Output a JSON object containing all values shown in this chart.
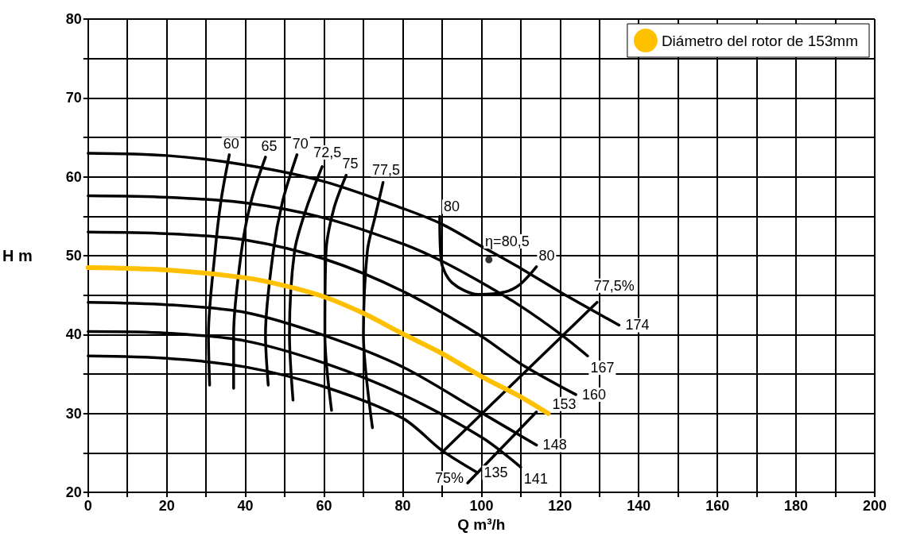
{
  "chart_data": {
    "type": "line",
    "xlabel": "Q m³/h",
    "ylabel": "H m",
    "xlim": [
      0,
      200
    ],
    "ylim": [
      20,
      80
    ],
    "xticks": [
      0,
      {
        "value": 10,
        "label": null
      },
      20,
      {
        "value": 30,
        "label": null
      },
      40,
      {
        "value": 50,
        "label": null
      },
      60,
      {
        "value": 70,
        "label": null
      },
      80,
      {
        "value": 90,
        "label": null
      },
      100,
      {
        "value": 110,
        "label": null
      },
      120,
      {
        "value": 130,
        "label": null
      },
      140,
      {
        "value": 150,
        "label": null
      },
      160,
      {
        "value": 170,
        "label": null
      },
      180,
      {
        "value": 190,
        "label": null
      },
      200
    ],
    "yticks": [
      20,
      {
        "value": 25,
        "label": null
      },
      30,
      {
        "value": 35,
        "label": null
      },
      40,
      {
        "value": 45,
        "label": null
      },
      50,
      {
        "value": 55,
        "label": null
      },
      60,
      {
        "value": 65,
        "label": null
      },
      70,
      {
        "value": 75,
        "label": null
      },
      80
    ],
    "grid": true,
    "legend": "top right",
    "marker": "none",
    "line_style": "solid",
    "series": [
      {
        "name": "174",
        "color": "#000000",
        "x": [
          0,
          20,
          40,
          60,
          80,
          90,
          100,
          110,
          120,
          135
        ],
        "values": [
          63.0,
          62.7,
          61.5,
          59.4,
          56.0,
          54.0,
          51.2,
          48.4,
          45.4,
          41.2
        ]
      },
      {
        "name": "167",
        "color": "#000000",
        "x": [
          0,
          20,
          40,
          60,
          80,
          90,
          100,
          110,
          120,
          127
        ],
        "values": [
          57.6,
          57.4,
          56.7,
          54.8,
          51.5,
          49.3,
          46.6,
          43.6,
          40.1,
          37.3
        ]
      },
      {
        "name": "160",
        "color": "#000000",
        "x": [
          0,
          20,
          40,
          60,
          80,
          100,
          110,
          124
        ],
        "values": [
          53.0,
          52.8,
          52.0,
          49.6,
          45.5,
          39.8,
          36.3,
          32.4
        ]
      },
      {
        "name": "148",
        "color": "#000000",
        "x": [
          0,
          20,
          40,
          60,
          80,
          100,
          114
        ],
        "values": [
          44.1,
          43.8,
          42.8,
          39.9,
          35.9,
          30.1,
          26.0
        ]
      },
      {
        "name": "141",
        "color": "#000000",
        "x": [
          0,
          20,
          40,
          60,
          80,
          100,
          110
        ],
        "values": [
          40.4,
          40.2,
          39.2,
          36.4,
          32.4,
          27.0,
          23.2
        ]
      },
      {
        "name": "135",
        "color": "#000000",
        "x": [
          0,
          20,
          40,
          60,
          80,
          90,
          99
        ],
        "values": [
          37.3,
          37.0,
          35.9,
          33.4,
          29.4,
          25.3,
          22.5
        ]
      },
      {
        "name": "60",
        "color": "#000000",
        "x": [
          30.9,
          30.6,
          32.3,
          33.8,
          35.9
        ],
        "values": [
          33.6,
          40.0,
          50.6,
          57.0,
          62.8
        ]
      },
      {
        "name": "65",
        "color": "#000000",
        "x": [
          37.0,
          37.0,
          39.0,
          41.5,
          45.1
        ],
        "values": [
          33.2,
          40.0,
          50.6,
          57.0,
          62.5
        ]
      },
      {
        "name": "70",
        "color": "#000000",
        "x": [
          45.8,
          45.1,
          47.1,
          49.5,
          53.1
        ],
        "values": [
          33.6,
          40.0,
          50.6,
          57.0,
          62.8
        ]
      },
      {
        "name": "72,5",
        "color": "#000000",
        "x": [
          52.1,
          51.2,
          52.5,
          55.5,
          59.5
        ],
        "values": [
          31.7,
          40.0,
          50.6,
          56.0,
          61.3
        ]
      },
      {
        "name": "75",
        "color": "#000000",
        "x": [
          61.9,
          60.2,
          60.5,
          62.5,
          65.6
        ],
        "values": [
          30.4,
          40.0,
          50.6,
          56.0,
          60.2
        ]
      },
      {
        "name": "77,5",
        "color": "#000000",
        "x": [
          72.3,
          70.0,
          71.0,
          73.0,
          75.0
        ],
        "values": [
          28.2,
          40.0,
          50.6,
          55.0,
          59.3
        ]
      },
      {
        "name": "80",
        "color": "#000000",
        "x": [
          89.4,
          89.8,
          92.5,
          99.2,
          105.9,
          109.9,
          114.0
        ],
        "values": [
          55.0,
          49.3,
          46.6,
          45.1,
          45.4,
          46.4,
          48.6
        ]
      },
      {
        "name": "77,5%",
        "color": "#000000",
        "x": [
          89.8,
          129.4
        ],
        "values": [
          25.0,
          44.1
        ]
      },
      {
        "name": "75%",
        "color": "#000000",
        "x": [
          114.0,
          96.5
        ],
        "values": [
          30.2,
          21.2
        ]
      },
      {
        "name": "η=80,5",
        "type": "scatter",
        "marker": "circle",
        "color": "#000000",
        "x": [
          101.9
        ],
        "values": [
          49.5
        ]
      },
      {
        "name": "Diámetro del rotor de 153mm",
        "color": "#ffc000",
        "x": [
          0,
          20,
          40,
          50,
          60,
          70,
          80,
          90,
          100,
          110,
          117
        ],
        "values": [
          48.5,
          48.2,
          47.2,
          46.2,
          44.8,
          42.7,
          40.1,
          37.6,
          34.7,
          32.1,
          30.0
        ]
      }
    ],
    "annotations": [
      {
        "text": "80",
        "x": 89.4,
        "y": 55.0
      },
      {
        "text": "153",
        "x": 117,
        "y": 30.0
      }
    ]
  }
}
